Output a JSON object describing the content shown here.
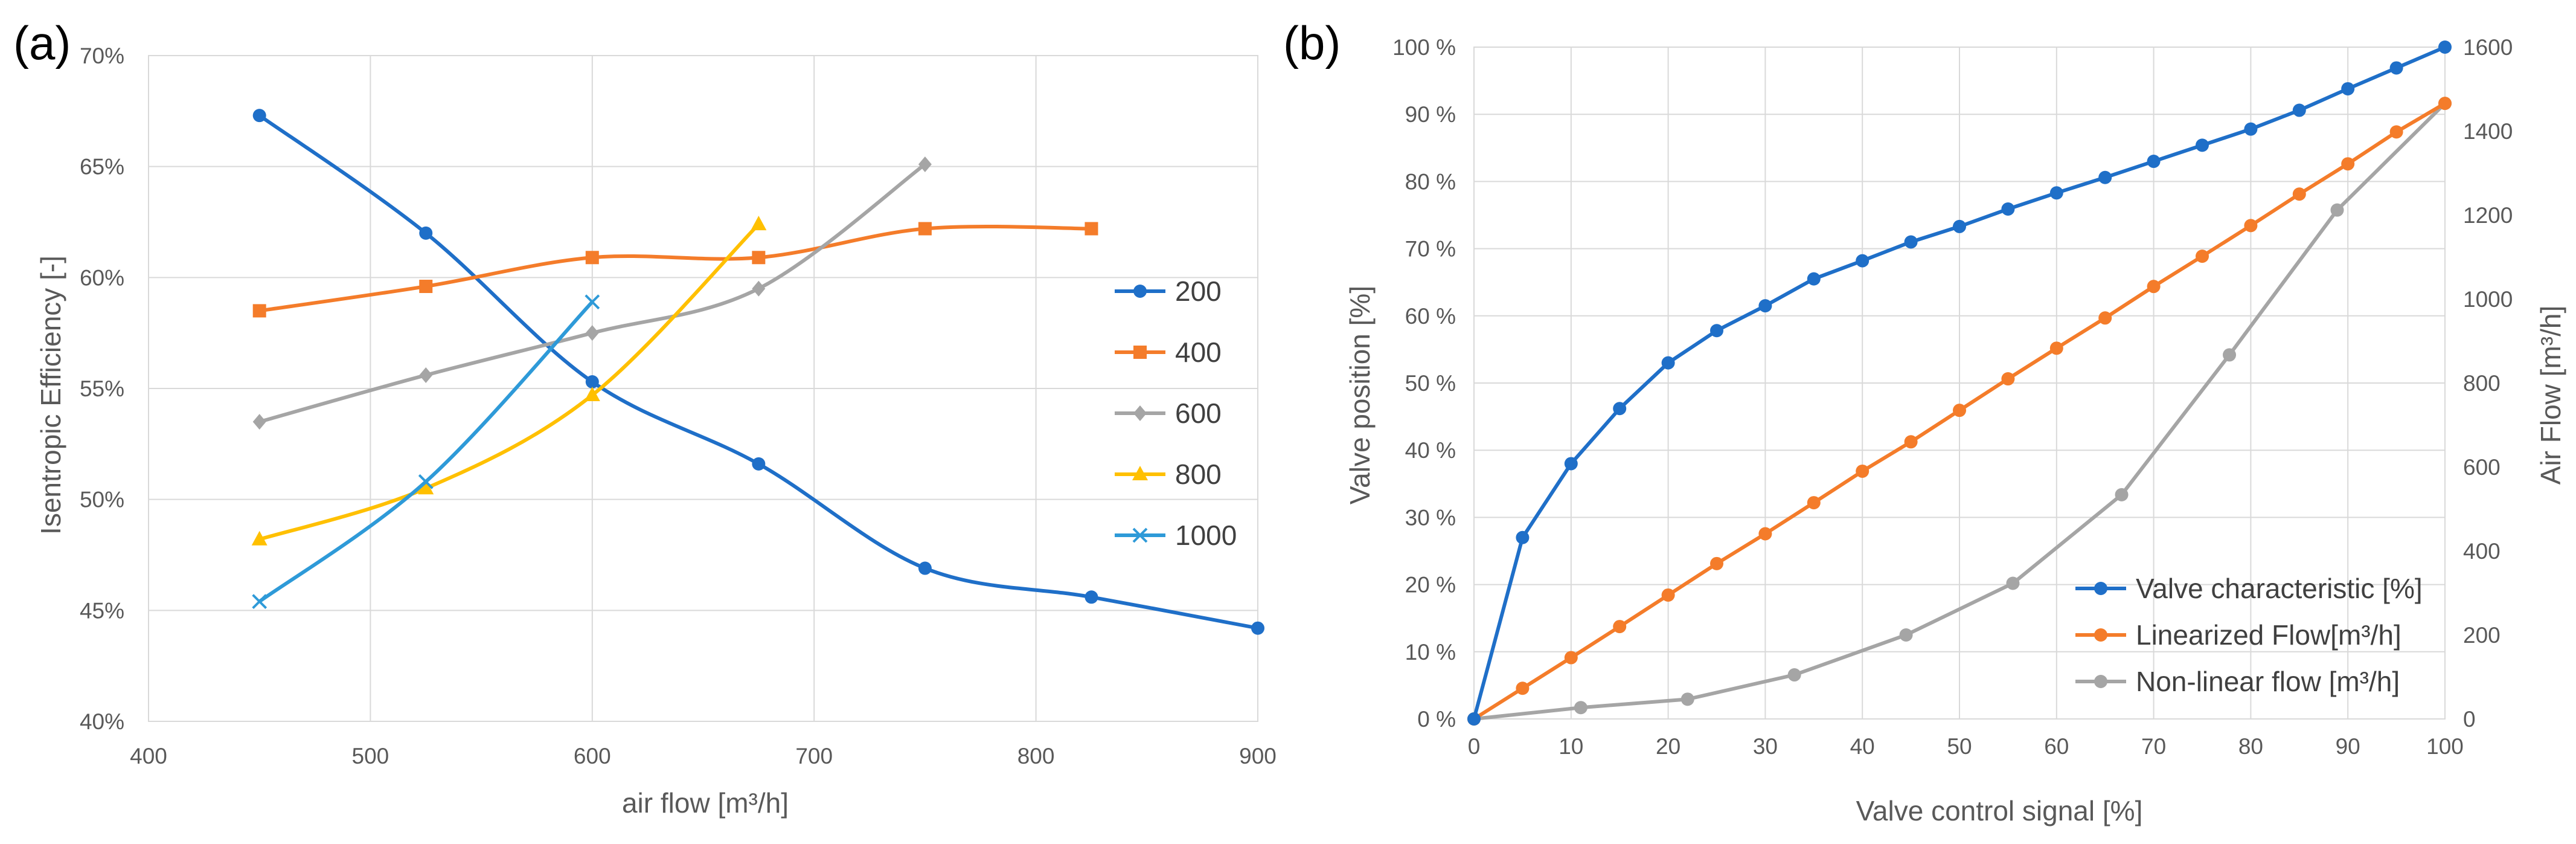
{
  "panels": {
    "a": "(a)",
    "b": "(b)"
  },
  "chart_data": [
    {
      "type": "line",
      "xlabel": "air flow [m³/h]",
      "ylabel": "Isentropic Efficiency [-]",
      "xlim": [
        400,
        900
      ],
      "ylim": [
        40,
        70
      ],
      "x_ticks": [
        "400",
        "500",
        "600",
        "700",
        "800",
        "900"
      ],
      "y_ticks": [
        "40%",
        "45%",
        "50%",
        "55%",
        "60%",
        "65%",
        "70%"
      ],
      "grid": true,
      "smooth": true,
      "legend_position": "right",
      "series": [
        {
          "name": "200",
          "color": "#1f6fc8",
          "marker": "circle",
          "x": [
            450,
            525,
            600,
            675,
            750,
            825,
            900
          ],
          "y": [
            67.3,
            62.0,
            55.3,
            51.6,
            46.9,
            45.6,
            44.2
          ]
        },
        {
          "name": "400",
          "color": "#f47c2a",
          "marker": "square",
          "x": [
            450,
            525,
            600,
            675,
            750,
            825
          ],
          "y": [
            58.5,
            59.6,
            60.9,
            60.9,
            62.2,
            62.2
          ]
        },
        {
          "name": "600",
          "color": "#a5a5a5",
          "marker": "diamond",
          "x": [
            450,
            525,
            600,
            675,
            750
          ],
          "y": [
            53.5,
            55.6,
            57.5,
            59.5,
            65.1
          ]
        },
        {
          "name": "800",
          "color": "#ffc000",
          "marker": "triangle",
          "x": [
            450,
            525,
            600,
            675
          ],
          "y": [
            48.2,
            50.5,
            54.7,
            62.4
          ]
        },
        {
          "name": "1000",
          "color": "#2e9ad8",
          "marker": "x",
          "x": [
            450,
            525,
            600
          ],
          "y": [
            45.4,
            50.8,
            58.9
          ]
        }
      ]
    },
    {
      "type": "line",
      "xlabel": "Valve control signal [%]",
      "ylabel": "Valve position [%]",
      "ylabel_right": "Air Flow [m³/h]",
      "xlim": [
        0,
        100
      ],
      "ylim": [
        0,
        100
      ],
      "ylim_right": [
        0,
        1600
      ],
      "x_ticks": [
        "0",
        "10",
        "20",
        "30",
        "40",
        "50",
        "60",
        "70",
        "80",
        "90",
        "100"
      ],
      "y_ticks": [
        "0 %",
        "10 %",
        "20 %",
        "30 %",
        "40 %",
        "50 %",
        "60 %",
        "70 %",
        "80 %",
        "90 %",
        "100 %"
      ],
      "y_ticks_right": [
        "0",
        "200",
        "400",
        "600",
        "800",
        "1000",
        "1200",
        "1400",
        "1600"
      ],
      "grid": true,
      "legend_position": "bottom-right",
      "series": [
        {
          "name": "Valve characteristic [%]",
          "color": "#1f6fc8",
          "marker": "circle",
          "axis": "left",
          "x": [
            0,
            5,
            10,
            15,
            20,
            25,
            30,
            35,
            40,
            45,
            50,
            55,
            60,
            65,
            70,
            75,
            80,
            85,
            90,
            95,
            100
          ],
          "y": [
            0,
            27,
            38,
            46.2,
            53,
            57.8,
            61.5,
            65.5,
            68.2,
            71,
            73.3,
            75.9,
            78.3,
            80.6,
            83,
            85.4,
            87.8,
            90.6,
            93.8,
            96.9,
            100
          ]
        },
        {
          "name": "Linearized Flow[m³/h]",
          "color": "#f47c2a",
          "marker": "circle",
          "axis": "right",
          "x": [
            0,
            5,
            10,
            15,
            20,
            25,
            30,
            35,
            40,
            45,
            50,
            55,
            60,
            65,
            70,
            75,
            80,
            85,
            90,
            95,
            100
          ],
          "y": [
            0,
            73,
            146,
            220,
            295,
            370,
            441,
            515,
            590,
            660,
            735,
            810,
            883,
            955,
            1030,
            1102,
            1175,
            1250,
            1322,
            1398,
            1466
          ]
        },
        {
          "name": "Non-linear flow [m³/h]",
          "color": "#a5a5a5",
          "marker": "circle",
          "axis": "right",
          "x": [
            0,
            11,
            22,
            33,
            44.5,
            55.5,
            66.7,
            77.8,
            88.9,
            100
          ],
          "y": [
            0,
            27,
            47,
            105,
            200,
            323,
            534,
            867,
            1212,
            1466
          ]
        }
      ]
    }
  ]
}
